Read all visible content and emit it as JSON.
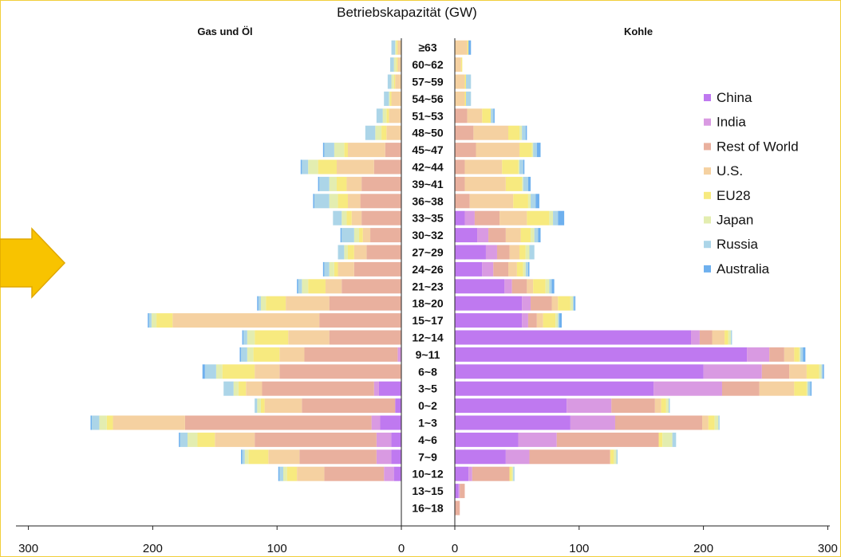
{
  "chart_data": {
    "type": "bar",
    "title": "Betriebskapazität (GW)",
    "left_panel_title": "Gas und Öl",
    "right_panel_title": "Kohle",
    "categories": [
      "≥63",
      "60~62",
      "57~59",
      "54~56",
      "51~53",
      "48~50",
      "45~47",
      "42~44",
      "39~41",
      "36~38",
      "33~35",
      "30~32",
      "27~29",
      "24~26",
      "21~23",
      "18~20",
      "15~17",
      "12~14",
      "9~11",
      "6~8",
      "3~5",
      "0~2",
      "1~3",
      "4~6",
      "7~9",
      "10~12",
      "13~15",
      "16~18"
    ],
    "left_axis": {
      "range": [
        300,
        0
      ],
      "ticks": [
        "300",
        "200",
        "100",
        "0"
      ]
    },
    "right_axis": {
      "range": [
        0,
        300
      ],
      "ticks": [
        "0",
        "100",
        "200",
        "300"
      ]
    },
    "legend_position": "right",
    "series": [
      {
        "name": "China",
        "color": "#bf79f0",
        "gas_oil": [
          0,
          0,
          0,
          0,
          0,
          0,
          0,
          0,
          0,
          0,
          0,
          0,
          0,
          0,
          0,
          0,
          0,
          0,
          0,
          0,
          18,
          5,
          17,
          8,
          8,
          6,
          0,
          0
        ],
        "coal": [
          0,
          0,
          0,
          0,
          0,
          0,
          0,
          0,
          0,
          0,
          8,
          18,
          25,
          22,
          40,
          54,
          54,
          190,
          235,
          200,
          160,
          90,
          93,
          51,
          41,
          11,
          3,
          0
        ]
      },
      {
        "name": "India",
        "color": "#d99ae2",
        "gas_oil": [
          0,
          0,
          0,
          0,
          0,
          0,
          0,
          0,
          0,
          0,
          0,
          0,
          0,
          0,
          0,
          0,
          0,
          0,
          3,
          0,
          4,
          0,
          7,
          12,
          12,
          8,
          0,
          0
        ],
        "coal": [
          0,
          0,
          0,
          0,
          0,
          0,
          0,
          0,
          0,
          0,
          8,
          9,
          9,
          9,
          6,
          7,
          5,
          7,
          18,
          47,
          55,
          36,
          36,
          31,
          19,
          3,
          1,
          0
        ]
      },
      {
        "name": "Rest of World",
        "color": "#e9b09e",
        "gas_oil": [
          0,
          0,
          0,
          0,
          0,
          0,
          13,
          22,
          32,
          33,
          32,
          25,
          28,
          38,
          48,
          58,
          66,
          58,
          75,
          98,
          90,
          75,
          150,
          98,
          62,
          48,
          0,
          0
        ],
        "coal": [
          0,
          0,
          0,
          0,
          10,
          15,
          17,
          8,
          8,
          12,
          20,
          14,
          10,
          12,
          12,
          17,
          7,
          10,
          12,
          22,
          30,
          35,
          70,
          82,
          65,
          30,
          4,
          4
        ]
      },
      {
        "name": "U.S.",
        "color": "#f5d1a1",
        "gas_oil": [
          3,
          3,
          5,
          8,
          10,
          12,
          30,
          30,
          12,
          10,
          8,
          6,
          10,
          13,
          13,
          35,
          118,
          33,
          20,
          20,
          13,
          30,
          58,
          32,
          25,
          22,
          0,
          0
        ],
        "coal": [
          10,
          5,
          8,
          8,
          12,
          28,
          35,
          30,
          33,
          35,
          22,
          12,
          8,
          7,
          5,
          5,
          5,
          10,
          8,
          14,
          28,
          5,
          5,
          0,
          0,
          0,
          0,
          0
        ]
      },
      {
        "name": "EU28",
        "color": "#f7ea7f",
        "gas_oil": [
          1,
          1,
          1,
          1,
          2,
          4,
          3,
          15,
          8,
          8,
          4,
          3,
          5,
          3,
          14,
          16,
          13,
          27,
          21,
          26,
          6,
          3,
          5,
          14,
          16,
          8,
          0,
          0
        ],
        "coal": [
          1,
          1,
          1,
          1,
          7,
          9,
          10,
          13,
          13,
          12,
          18,
          8,
          5,
          5,
          10,
          10,
          10,
          3,
          4,
          10,
          10,
          4,
          5,
          3,
          3,
          2,
          0,
          0
        ]
      },
      {
        "name": "Japan",
        "color": "#e3edb0",
        "gas_oil": [
          1,
          2,
          2,
          1,
          3,
          5,
          8,
          8,
          6,
          7,
          4,
          4,
          3,
          4,
          5,
          4,
          4,
          6,
          5,
          5,
          4,
          3,
          6,
          8,
          3,
          3,
          0,
          0
        ],
        "coal": [
          0,
          0,
          0,
          0,
          0,
          2,
          1,
          1,
          1,
          2,
          3,
          3,
          3,
          2,
          3,
          2,
          2,
          2,
          1,
          2,
          1,
          2,
          3,
          8,
          2,
          1,
          0,
          0
        ]
      },
      {
        "name": "Russia",
        "color": "#acd5e8",
        "gas_oil": [
          3,
          3,
          3,
          4,
          5,
          8,
          8,
          5,
          8,
          12,
          7,
          10,
          5,
          4,
          3,
          2,
          2,
          3,
          5,
          9,
          8,
          2,
          6,
          6,
          2,
          3,
          0,
          0
        ],
        "coal": [
          0,
          0,
          4,
          4,
          2,
          3,
          3,
          3,
          4,
          4,
          4,
          3,
          4,
          2,
          2,
          1,
          1,
          1,
          2,
          1,
          2,
          1,
          1,
          3,
          1,
          1,
          0,
          0
        ]
      },
      {
        "name": "Australia",
        "color": "#6eb0ee",
        "gas_oil": [
          0,
          0,
          0,
          0,
          0,
          0,
          1,
          1,
          1,
          1,
          0,
          1,
          0,
          1,
          1,
          1,
          1,
          1,
          1,
          2,
          0,
          0,
          1,
          1,
          1,
          1,
          0,
          0
        ],
        "coal": [
          2,
          0,
          0,
          0,
          1,
          1,
          3,
          1,
          2,
          3,
          5,
          2,
          0,
          1,
          2,
          1,
          2,
          0,
          2,
          1,
          1,
          0,
          0,
          0,
          0,
          0,
          0,
          0
        ]
      }
    ]
  }
}
